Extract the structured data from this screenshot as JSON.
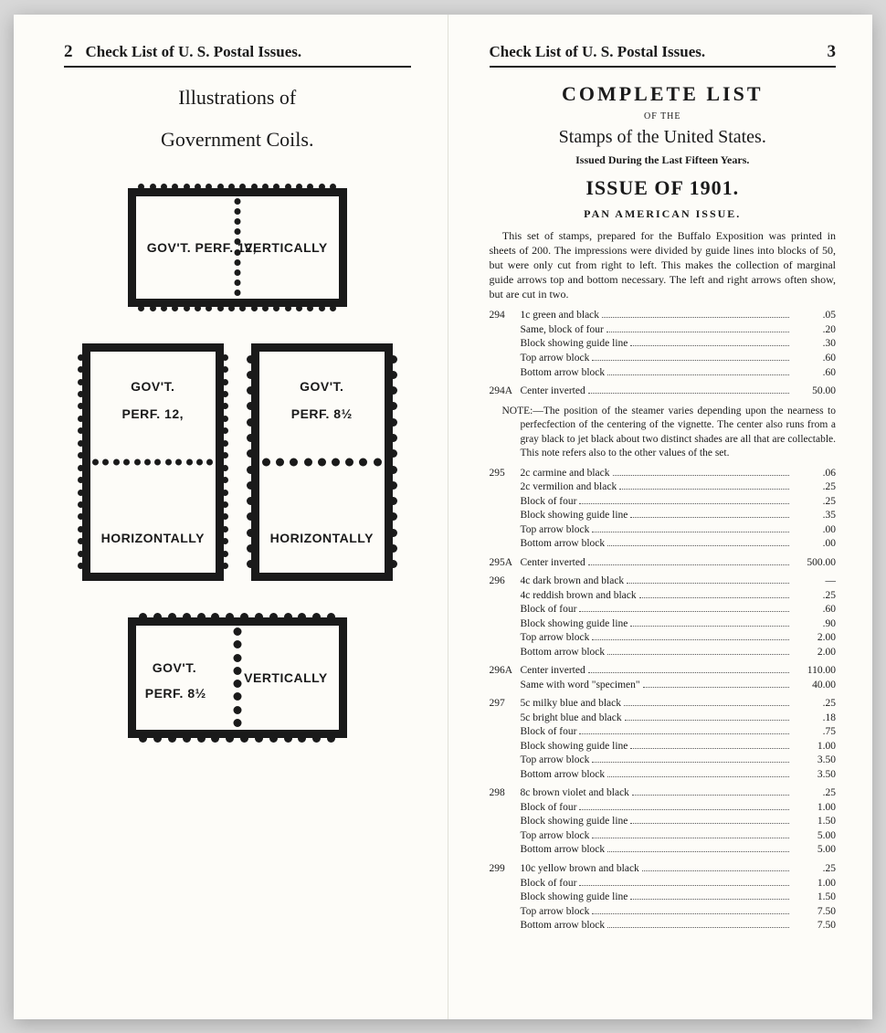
{
  "background_color": "#d8d8d8",
  "paper_color": "#fdfcf8",
  "ink_color": "#1a1a1a",
  "left_page": {
    "page_number": "2",
    "header": "Check List of U. S. Postal Issues.",
    "heading_line1": "Illustrations of",
    "heading_line2": "Government Coils.",
    "coils": {
      "top": {
        "label_left": "GOV'T. PERF. 12,",
        "label_right": "VERTICALLY"
      },
      "mid_left": {
        "line1": "GOV'T.",
        "line2": "PERF. 12,",
        "line3": "HORIZONTALLY"
      },
      "mid_right": {
        "line1": "GOV'T.",
        "line2": "PERF. 8½",
        "line3": "HORIZONTALLY"
      },
      "bottom": {
        "label_left": "GOV'T.",
        "label_left2": "PERF. 8½",
        "label_right": "VERTICALLY"
      }
    }
  },
  "right_page": {
    "page_number": "3",
    "header": "Check List of U. S. Postal Issues.",
    "title": "COMPLETE LIST",
    "of_the": "OF THE",
    "subtitle": "Stamps of the United States.",
    "issued_line": "Issued During the Last Fifteen Years.",
    "issue_year": "ISSUE OF 1901.",
    "section_heading": "PAN AMERICAN ISSUE.",
    "intro_para": "This set of stamps, prepared for the Buffalo Exposition was printed in sheets of 200. The impressions were divided by guide lines into blocks of 50, but were only cut from right to left. This makes the collection of marginal guide arrows top and bottom necessary. The left and right arrows often show, but are cut in two.",
    "note_block": "NOTE:—The position of the steamer varies depending upon the nearness to perfecfection of the centering of the vignette. The center also runs from a gray black to jet black about two distinct shades are all that are collectable. This note refers also to the other values of the set.",
    "listings": [
      {
        "num": "294",
        "rows": [
          {
            "desc": "1c green and black",
            "price": ".05"
          },
          {
            "desc": "Same, block of four",
            "price": ".20"
          },
          {
            "desc": "Block showing guide line",
            "price": ".30"
          },
          {
            "desc": "Top arrow block",
            "price": ".60"
          },
          {
            "desc": "Bottom arrow block",
            "price": ".60"
          }
        ]
      },
      {
        "num": "294A",
        "rows": [
          {
            "desc": "Center inverted",
            "price": "50.00"
          }
        ]
      },
      {
        "note": true
      },
      {
        "num": "295",
        "rows": [
          {
            "desc": "2c carmine and black",
            "price": ".06"
          },
          {
            "desc": "2c vermilion and black",
            "price": ".25"
          },
          {
            "desc": "Block of four",
            "price": ".25"
          },
          {
            "desc": "Block showing guide line",
            "price": ".35"
          },
          {
            "desc": "Top arrow block",
            "price": ".00"
          },
          {
            "desc": "Bottom arrow block",
            "price": ".00"
          }
        ]
      },
      {
        "num": "295A",
        "rows": [
          {
            "desc": "Center inverted",
            "price": "500.00"
          }
        ]
      },
      {
        "num": "296",
        "rows": [
          {
            "desc": "4c dark brown and black",
            "price": "—"
          },
          {
            "desc": "4c reddish brown and black",
            "price": ".25"
          },
          {
            "desc": "Block of four",
            "price": ".60"
          },
          {
            "desc": "Block showing guide line",
            "price": ".90"
          },
          {
            "desc": "Top arrow block",
            "price": "2.00"
          },
          {
            "desc": "Bottom arrow block",
            "price": "2.00"
          }
        ]
      },
      {
        "num": "296A",
        "rows": [
          {
            "desc": "Center inverted",
            "price": "110.00"
          },
          {
            "desc": "Same with word \"specimen\"",
            "price": "40.00"
          }
        ]
      },
      {
        "num": "297",
        "rows": [
          {
            "desc": "5c milky blue and black",
            "price": ".25"
          },
          {
            "desc": "5c bright blue and black",
            "price": ".18"
          },
          {
            "desc": "Block of four",
            "price": ".75"
          },
          {
            "desc": "Block showing guide line",
            "price": "1.00"
          },
          {
            "desc": "Top arrow block",
            "price": "3.50"
          },
          {
            "desc": "Bottom arrow block",
            "price": "3.50"
          }
        ]
      },
      {
        "num": "298",
        "rows": [
          {
            "desc": "8c brown violet and black",
            "price": ".25"
          },
          {
            "desc": "Block of four",
            "price": "1.00"
          },
          {
            "desc": "Block showing guide line",
            "price": "1.50"
          },
          {
            "desc": "Top arrow block",
            "price": "5.00"
          },
          {
            "desc": "Bottom arrow block",
            "price": "5.00"
          }
        ]
      },
      {
        "num": "299",
        "rows": [
          {
            "desc": "10c yellow brown and black",
            "price": ".25"
          },
          {
            "desc": "Block of four",
            "price": "1.00"
          },
          {
            "desc": "Block showing guide line",
            "price": "1.50"
          },
          {
            "desc": "Top arrow block",
            "price": "7.50"
          },
          {
            "desc": "Bottom arrow block",
            "price": "7.50"
          }
        ]
      }
    ]
  }
}
